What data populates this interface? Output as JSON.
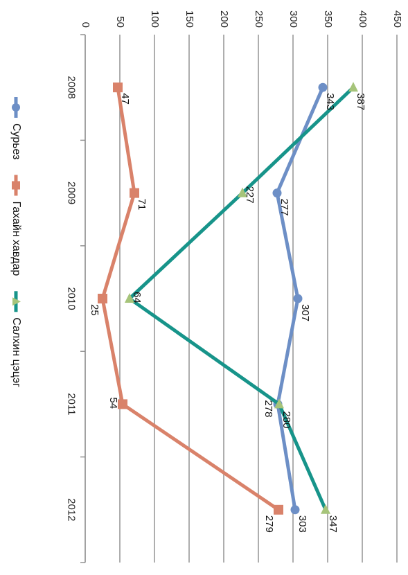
{
  "chart_data": {
    "type": "line",
    "orientation": "rotated-90-clockwise",
    "categories": [
      "2008",
      "2009",
      "2010",
      "2011",
      "2012"
    ],
    "y_ticks": [
      "0",
      "50",
      "100",
      "150",
      "200",
      "250",
      "300",
      "350",
      "400",
      "450"
    ],
    "ylim": [
      0,
      450
    ],
    "grid": "horizontal",
    "legend_position": "bottom",
    "series": [
      {
        "name": "Сурьез",
        "color": "#6d8fc6",
        "marker": "circle",
        "values": [
          343,
          277,
          307,
          278,
          303
        ],
        "labels": [
          "343",
          "277",
          "307",
          "278",
          "303"
        ]
      },
      {
        "name": "Гахайн хавдар",
        "color": "#d9826a",
        "marker": "square",
        "values": [
          47,
          71,
          25,
          54,
          279
        ],
        "labels": [
          "47",
          "71",
          "25",
          "54",
          "279"
        ]
      },
      {
        "name": "Салхин цэцэг",
        "color": "#17948a",
        "marker_color": "#a6c47a",
        "marker": "triangle",
        "values": [
          387,
          227,
          64,
          280,
          347
        ],
        "labels": [
          "387",
          "227",
          "64",
          "280",
          "347"
        ]
      }
    ]
  }
}
